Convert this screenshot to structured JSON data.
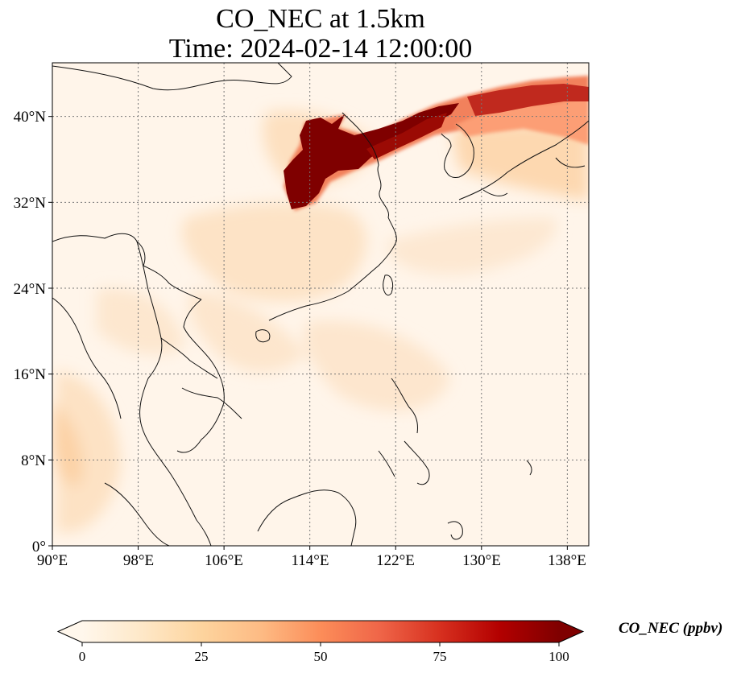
{
  "title": {
    "line1": "CO_NEC at 1.5km",
    "line2": "Time: 2024-02-14 12:00:00"
  },
  "map": {
    "lon_range": [
      90,
      140
    ],
    "lat_range": [
      0,
      45
    ],
    "lon_ticks": [
      "90°E",
      "98°E",
      "106°E",
      "114°E",
      "122°E",
      "130°E",
      "138°E"
    ],
    "lat_ticks": [
      "0°",
      "8°N",
      "16°N",
      "24°N",
      "32°N",
      "40°N"
    ],
    "gridlines": "dotted",
    "colormap": "OrRd"
  },
  "colorbar": {
    "label": "CO_NEC (ppbv)",
    "min": 0,
    "max": 100,
    "extend": "both",
    "ticks": [
      "0",
      "25",
      "50",
      "75",
      "100"
    ],
    "colors": [
      "#fff7ec",
      "#fee8c8",
      "#fdd49e",
      "#fdbb84",
      "#fc8d59",
      "#ef6548",
      "#d7301f",
      "#b30000",
      "#7f0000"
    ]
  }
}
